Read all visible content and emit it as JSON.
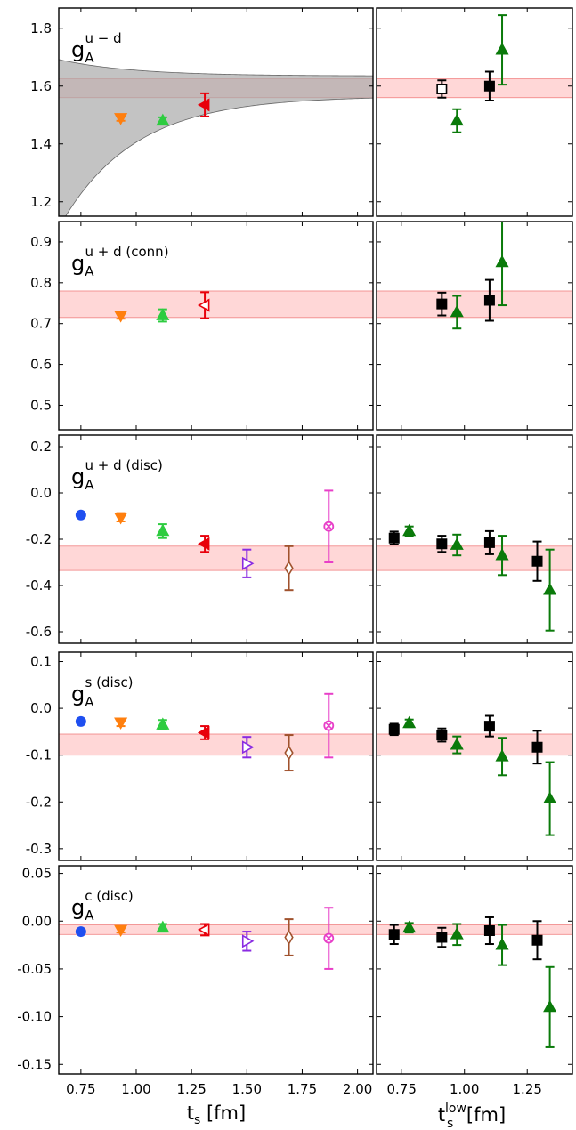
{
  "chart_data": {
    "type": "scatter",
    "xlabel_left": "t",
    "xlabel_left_sub": "s",
    "xlabel_left_unit": " [fm]",
    "xlabel_right": "t",
    "xlabel_right_sup": "low",
    "xlabel_right_sub": "s",
    "xlabel_right_unit": " [fm]",
    "left_xlim": [
      0.65,
      2.07
    ],
    "right_xlim": [
      0.65,
      1.43
    ],
    "left_xticks": [
      0.75,
      1.0,
      1.25,
      1.5,
      1.75,
      2.0
    ],
    "left_xtick_labels": [
      "0.75",
      "1.00",
      "1.25",
      "1.50",
      "1.75",
      "2.00"
    ],
    "right_xticks": [
      0.75,
      1.0,
      1.25
    ],
    "right_xtick_labels": [
      "0.75",
      "1.00",
      "1.25"
    ],
    "colors": {
      "blue": "#1f4ff0",
      "orange": "#ff7f0e",
      "green_light": "#2ecc40",
      "red": "#e8000b",
      "purple": "#8a2be2",
      "brown": "#a0522d",
      "pink": "#e83fc8",
      "green_dark": "#0a7a0a",
      "black": "#000000",
      "band": "#ffb6b6",
      "fit_band": "#a9a9a9"
    },
    "panels": [
      {
        "label": "g",
        "label_sub": "A",
        "label_sup": "u − d",
        "ylim": [
          1.15,
          1.87
        ],
        "yticks": [
          1.2,
          1.4,
          1.6,
          1.8
        ],
        "ytick_labels": [
          "1.2",
          "1.4",
          "1.6",
          "1.8"
        ],
        "band": [
          1.56,
          1.625
        ],
        "fit_curve": {
          "A": 1.6,
          "B": 1.4,
          "C": 3.0,
          "half_width_A": 0.035,
          "half_width_B": 1.8
        },
        "left_points": [
          {
            "x": 0.93,
            "y": 1.49,
            "err": 0.01,
            "marker": "tri-down",
            "color": "orange",
            "fill": true
          },
          {
            "x": 1.12,
            "y": 1.48,
            "err": 0.012,
            "marker": "tri-up",
            "color": "green_light",
            "fill": true
          },
          {
            "x": 1.31,
            "y": 1.535,
            "err": 0.04,
            "marker": "tri-left-half",
            "color": "red",
            "fill": true
          }
        ],
        "right_points": [
          {
            "x": 0.91,
            "y": 1.59,
            "err": 0.03,
            "marker": "square",
            "color": "black",
            "fill": false
          },
          {
            "x": 0.97,
            "y": 1.48,
            "err": 0.04,
            "marker": "tri-up",
            "color": "green_dark",
            "fill": true
          },
          {
            "x": 1.1,
            "y": 1.6,
            "err": 0.05,
            "marker": "square",
            "color": "black",
            "fill": true
          },
          {
            "x": 1.15,
            "y": 1.725,
            "err": 0.12,
            "marker": "tri-up",
            "color": "green_dark",
            "fill": true
          }
        ]
      },
      {
        "label": "g",
        "label_sub": "A",
        "label_sup": "u + d (conn)",
        "ylim": [
          0.44,
          0.95
        ],
        "yticks": [
          0.5,
          0.6,
          0.7,
          0.8,
          0.9
        ],
        "ytick_labels": [
          "0.5",
          "0.6",
          "0.7",
          "0.8",
          "0.9"
        ],
        "band": [
          0.715,
          0.78
        ],
        "left_points": [
          {
            "x": 0.93,
            "y": 0.72,
            "err": 0.008,
            "marker": "tri-down",
            "color": "orange",
            "fill": true
          },
          {
            "x": 1.12,
            "y": 0.72,
            "err": 0.015,
            "marker": "tri-up",
            "color": "green_light",
            "fill": true
          },
          {
            "x": 1.31,
            "y": 0.745,
            "err": 0.032,
            "marker": "tri-left",
            "color": "red",
            "fill": false
          }
        ],
        "right_points": [
          {
            "x": 0.91,
            "y": 0.748,
            "err": 0.028,
            "marker": "square",
            "color": "black",
            "fill": true
          },
          {
            "x": 0.97,
            "y": 0.728,
            "err": 0.04,
            "marker": "tri-up",
            "color": "green_dark",
            "fill": true
          },
          {
            "x": 1.1,
            "y": 0.757,
            "err": 0.05,
            "marker": "square",
            "color": "black",
            "fill": true
          },
          {
            "x": 1.15,
            "y": 0.85,
            "err": 0.105,
            "marker": "tri-up",
            "color": "green_dark",
            "fill": true
          }
        ]
      },
      {
        "label": "g",
        "label_sub": "A",
        "label_sup": "u + d (disc)",
        "ylim": [
          -0.65,
          0.25
        ],
        "yticks": [
          -0.6,
          -0.4,
          -0.2,
          0.0,
          0.2
        ],
        "ytick_labels": [
          "-0.6",
          "-0.4",
          "-0.2",
          "0.0",
          "0.2"
        ],
        "band": [
          -0.335,
          -0.23
        ],
        "left_points": [
          {
            "x": 0.75,
            "y": -0.095,
            "err": 0.0,
            "marker": "circle",
            "color": "blue",
            "fill": true
          },
          {
            "x": 0.93,
            "y": -0.105,
            "err": 0.018,
            "marker": "tri-down",
            "color": "orange",
            "fill": true
          },
          {
            "x": 1.12,
            "y": -0.165,
            "err": 0.03,
            "marker": "tri-up",
            "color": "green_light",
            "fill": true
          },
          {
            "x": 1.31,
            "y": -0.22,
            "err": 0.035,
            "marker": "tri-left",
            "color": "red",
            "fill": true
          },
          {
            "x": 1.5,
            "y": -0.305,
            "err": 0.06,
            "marker": "tri-right",
            "color": "purple",
            "fill": false
          },
          {
            "x": 1.69,
            "y": -0.325,
            "err": 0.095,
            "marker": "diamond",
            "color": "brown",
            "fill": false
          },
          {
            "x": 1.87,
            "y": -0.145,
            "err": 0.155,
            "marker": "circle-x",
            "color": "pink",
            "fill": false
          }
        ],
        "right_points": [
          {
            "x": 0.72,
            "y": -0.195,
            "err": 0.028,
            "marker": "square",
            "color": "black",
            "fill": true
          },
          {
            "x": 0.78,
            "y": -0.165,
            "err": 0.02,
            "marker": "tri-up",
            "color": "green_dark",
            "fill": true
          },
          {
            "x": 0.91,
            "y": -0.22,
            "err": 0.035,
            "marker": "square",
            "color": "black",
            "fill": true
          },
          {
            "x": 0.97,
            "y": -0.225,
            "err": 0.045,
            "marker": "tri-up",
            "color": "green_dark",
            "fill": true
          },
          {
            "x": 1.1,
            "y": -0.215,
            "err": 0.05,
            "marker": "square",
            "color": "black",
            "fill": true
          },
          {
            "x": 1.15,
            "y": -0.27,
            "err": 0.085,
            "marker": "tri-up",
            "color": "green_dark",
            "fill": true
          },
          {
            "x": 1.29,
            "y": -0.295,
            "err": 0.085,
            "marker": "square",
            "color": "black",
            "fill": true
          },
          {
            "x": 1.34,
            "y": -0.42,
            "err": 0.175,
            "marker": "tri-up",
            "color": "green_dark",
            "fill": true
          }
        ]
      },
      {
        "label": "g",
        "label_sub": "A",
        "label_sup": "s (disc)",
        "ylim": [
          -0.325,
          0.12
        ],
        "yticks": [
          -0.3,
          -0.2,
          -0.1,
          0.0,
          0.1
        ],
        "ytick_labels": [
          "-0.3",
          "-0.2",
          "-0.1",
          "0.0",
          "0.1"
        ],
        "band": [
          -0.1,
          -0.055
        ],
        "left_points": [
          {
            "x": 0.75,
            "y": -0.028,
            "err": 0.0,
            "marker": "circle",
            "color": "blue",
            "fill": true
          },
          {
            "x": 0.93,
            "y": -0.03,
            "err": 0.008,
            "marker": "tri-down",
            "color": "orange",
            "fill": true
          },
          {
            "x": 1.12,
            "y": -0.035,
            "err": 0.01,
            "marker": "tri-up",
            "color": "green_light",
            "fill": true
          },
          {
            "x": 1.31,
            "y": -0.052,
            "err": 0.014,
            "marker": "tri-left",
            "color": "red",
            "fill": true
          },
          {
            "x": 1.5,
            "y": -0.083,
            "err": 0.022,
            "marker": "tri-right",
            "color": "purple",
            "fill": false
          },
          {
            "x": 1.69,
            "y": -0.095,
            "err": 0.038,
            "marker": "diamond",
            "color": "brown",
            "fill": false
          },
          {
            "x": 1.87,
            "y": -0.037,
            "err": 0.068,
            "marker": "circle-x",
            "color": "pink",
            "fill": false
          }
        ],
        "right_points": [
          {
            "x": 0.72,
            "y": -0.045,
            "err": 0.012,
            "marker": "square",
            "color": "black",
            "fill": true
          },
          {
            "x": 0.78,
            "y": -0.032,
            "err": 0.008,
            "marker": "tri-up",
            "color": "green_dark",
            "fill": true
          },
          {
            "x": 0.91,
            "y": -0.057,
            "err": 0.014,
            "marker": "square",
            "color": "black",
            "fill": true
          },
          {
            "x": 0.97,
            "y": -0.078,
            "err": 0.018,
            "marker": "tri-up",
            "color": "green_dark",
            "fill": true
          },
          {
            "x": 1.1,
            "y": -0.038,
            "err": 0.022,
            "marker": "square",
            "color": "black",
            "fill": true
          },
          {
            "x": 1.15,
            "y": -0.103,
            "err": 0.04,
            "marker": "tri-up",
            "color": "green_dark",
            "fill": true
          },
          {
            "x": 1.29,
            "y": -0.083,
            "err": 0.035,
            "marker": "square",
            "color": "black",
            "fill": true
          },
          {
            "x": 1.34,
            "y": -0.193,
            "err": 0.078,
            "marker": "tri-up",
            "color": "green_dark",
            "fill": true
          }
        ]
      },
      {
        "label": "g",
        "label_sub": "A",
        "label_sup": "c (disc)",
        "ylim": [
          -0.16,
          0.058
        ],
        "yticks": [
          -0.15,
          -0.1,
          -0.05,
          0.0,
          0.05
        ],
        "ytick_labels": [
          "-0.15",
          "-0.10",
          "-0.05",
          "0.00",
          "0.05"
        ],
        "band": [
          -0.014,
          -0.004
        ],
        "left_points": [
          {
            "x": 0.75,
            "y": -0.011,
            "err": 0.0,
            "marker": "circle",
            "color": "blue",
            "fill": true
          },
          {
            "x": 0.93,
            "y": -0.009,
            "err": 0.003,
            "marker": "tri-down",
            "color": "orange",
            "fill": true
          },
          {
            "x": 1.12,
            "y": -0.007,
            "err": 0.004,
            "marker": "tri-up",
            "color": "green_light",
            "fill": true
          },
          {
            "x": 1.31,
            "y": -0.009,
            "err": 0.006,
            "marker": "tri-left",
            "color": "red",
            "fill": false
          },
          {
            "x": 1.5,
            "y": -0.021,
            "err": 0.01,
            "marker": "tri-right",
            "color": "purple",
            "fill": false
          },
          {
            "x": 1.69,
            "y": -0.017,
            "err": 0.019,
            "marker": "diamond",
            "color": "brown",
            "fill": false
          },
          {
            "x": 1.87,
            "y": -0.018,
            "err": 0.032,
            "marker": "circle-x",
            "color": "pink",
            "fill": false
          }
        ],
        "right_points": [
          {
            "x": 0.72,
            "y": -0.014,
            "err": 0.01,
            "marker": "square",
            "color": "black",
            "fill": true
          },
          {
            "x": 0.78,
            "y": -0.007,
            "err": 0.005,
            "marker": "tri-up",
            "color": "green_dark",
            "fill": true
          },
          {
            "x": 0.91,
            "y": -0.017,
            "err": 0.01,
            "marker": "square",
            "color": "black",
            "fill": true
          },
          {
            "x": 0.97,
            "y": -0.014,
            "err": 0.011,
            "marker": "tri-up",
            "color": "green_dark",
            "fill": true
          },
          {
            "x": 1.1,
            "y": -0.01,
            "err": 0.014,
            "marker": "square",
            "color": "black",
            "fill": true
          },
          {
            "x": 1.15,
            "y": -0.025,
            "err": 0.021,
            "marker": "tri-up",
            "color": "green_dark",
            "fill": true
          },
          {
            "x": 1.29,
            "y": -0.02,
            "err": 0.02,
            "marker": "square",
            "color": "black",
            "fill": true
          },
          {
            "x": 1.34,
            "y": -0.09,
            "err": 0.042,
            "marker": "tri-up",
            "color": "green_dark",
            "fill": true
          }
        ]
      }
    ]
  }
}
